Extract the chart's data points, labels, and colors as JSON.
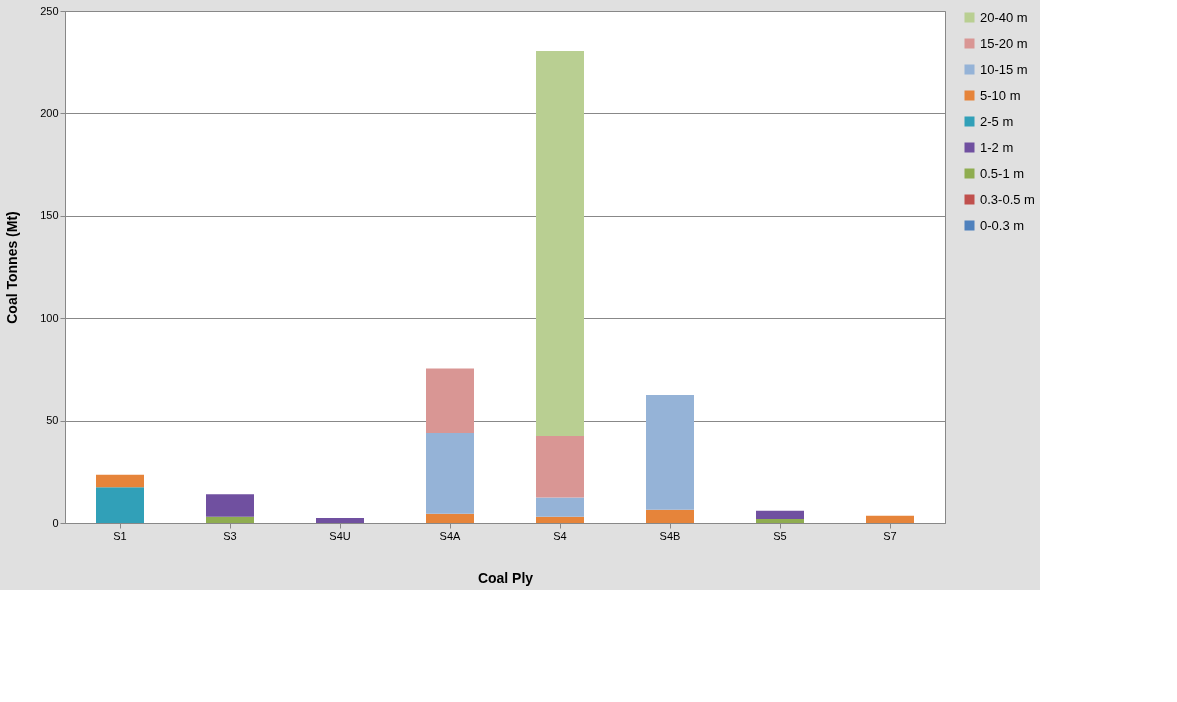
{
  "chart_data": {
    "type": "bar",
    "stacked": true,
    "xlabel": "Coal Ply",
    "ylabel": "Coal Tonnes (Mt)",
    "categories": [
      "S1",
      "S3",
      "S4U",
      "S4A",
      "S4",
      "S4B",
      "S5",
      "S7"
    ],
    "series": [
      {
        "name": "0-0.3 m",
        "color": "#4f81bd",
        "values": [
          0,
          0,
          0,
          0,
          0,
          0,
          0,
          0
        ]
      },
      {
        "name": "0.3-0.5 m",
        "color": "#c0504d",
        "values": [
          0,
          0,
          0,
          0,
          0,
          0,
          0,
          0
        ]
      },
      {
        "name": "0.5-1 m",
        "color": "#8fad50",
        "values": [
          0,
          3,
          0,
          0,
          0,
          0,
          2,
          0
        ]
      },
      {
        "name": "1-2 m",
        "color": "#7050a0",
        "values": [
          0,
          11,
          2.5,
          0,
          0,
          0,
          4,
          0
        ]
      },
      {
        "name": "2-5 m",
        "color": "#31a0b8",
        "values": [
          17.5,
          0,
          0,
          0,
          0,
          0,
          0,
          0
        ]
      },
      {
        "name": "5-10 m",
        "color": "#e6843a",
        "values": [
          6,
          0,
          0,
          4.5,
          3,
          6.5,
          0,
          3.5
        ]
      },
      {
        "name": "10-15 m",
        "color": "#95b3d7",
        "values": [
          0,
          0,
          0,
          39.5,
          9.5,
          56,
          0,
          0
        ]
      },
      {
        "name": "15-20 m",
        "color": "#d99694",
        "values": [
          0,
          0,
          0,
          31.5,
          30,
          0,
          0,
          0
        ]
      },
      {
        "name": "20-40 m",
        "color": "#b9cf92",
        "values": [
          0,
          0,
          0,
          0,
          188,
          0,
          0,
          0
        ]
      }
    ],
    "ylim": [
      0,
      250
    ],
    "yticks": [
      0,
      50,
      100,
      150,
      200,
      250
    ],
    "grid": "y",
    "legend": "right"
  }
}
